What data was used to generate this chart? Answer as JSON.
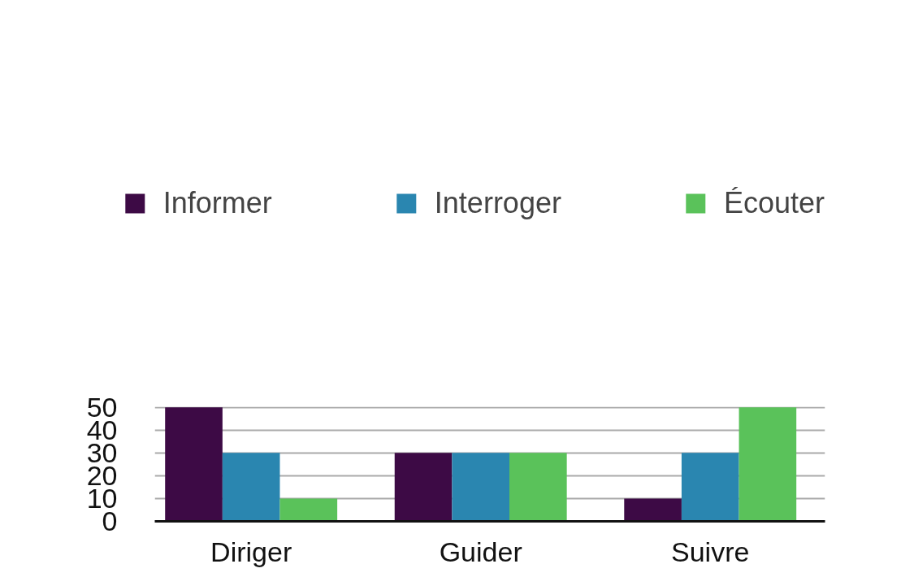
{
  "chart_data": {
    "type": "bar",
    "categories": [
      "Diriger",
      "Guider",
      "Suivre"
    ],
    "series": [
      {
        "name": "Informer",
        "color": "#3d0a45",
        "values": [
          50,
          30,
          10
        ]
      },
      {
        "name": "Interroger",
        "color": "#2a86b0",
        "values": [
          30,
          30,
          30
        ]
      },
      {
        "name": "Écouter",
        "color": "#5ac25a",
        "values": [
          10,
          30,
          50
        ]
      }
    ],
    "ylim": [
      0,
      50
    ],
    "yticks": [
      0,
      10,
      20,
      30,
      40,
      50
    ],
    "grid": "y",
    "legend": "top"
  }
}
